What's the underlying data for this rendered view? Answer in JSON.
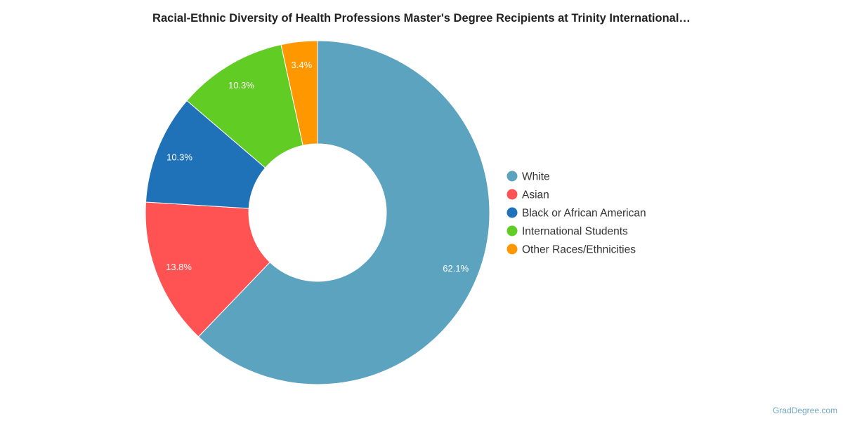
{
  "chart_data": {
    "type": "pie",
    "donut": true,
    "title": "Racial-Ethnic Diversity of Health Professions Master's Degree Recipients at Trinity International…",
    "categories": [
      "White",
      "Asian",
      "Black or African American",
      "International Students",
      "Other Races/Ethnicities"
    ],
    "values": [
      62.1,
      13.8,
      10.3,
      10.3,
      3.4
    ],
    "labels": [
      "62.1%",
      "13.8%",
      "10.3%",
      "10.3%",
      "3.4%"
    ],
    "colors": [
      "#5ca3bf",
      "#ff5252",
      "#1f72b8",
      "#60cc24",
      "#ff9800"
    ],
    "legend_position": "right"
  },
  "watermark": "GradDegree.com"
}
